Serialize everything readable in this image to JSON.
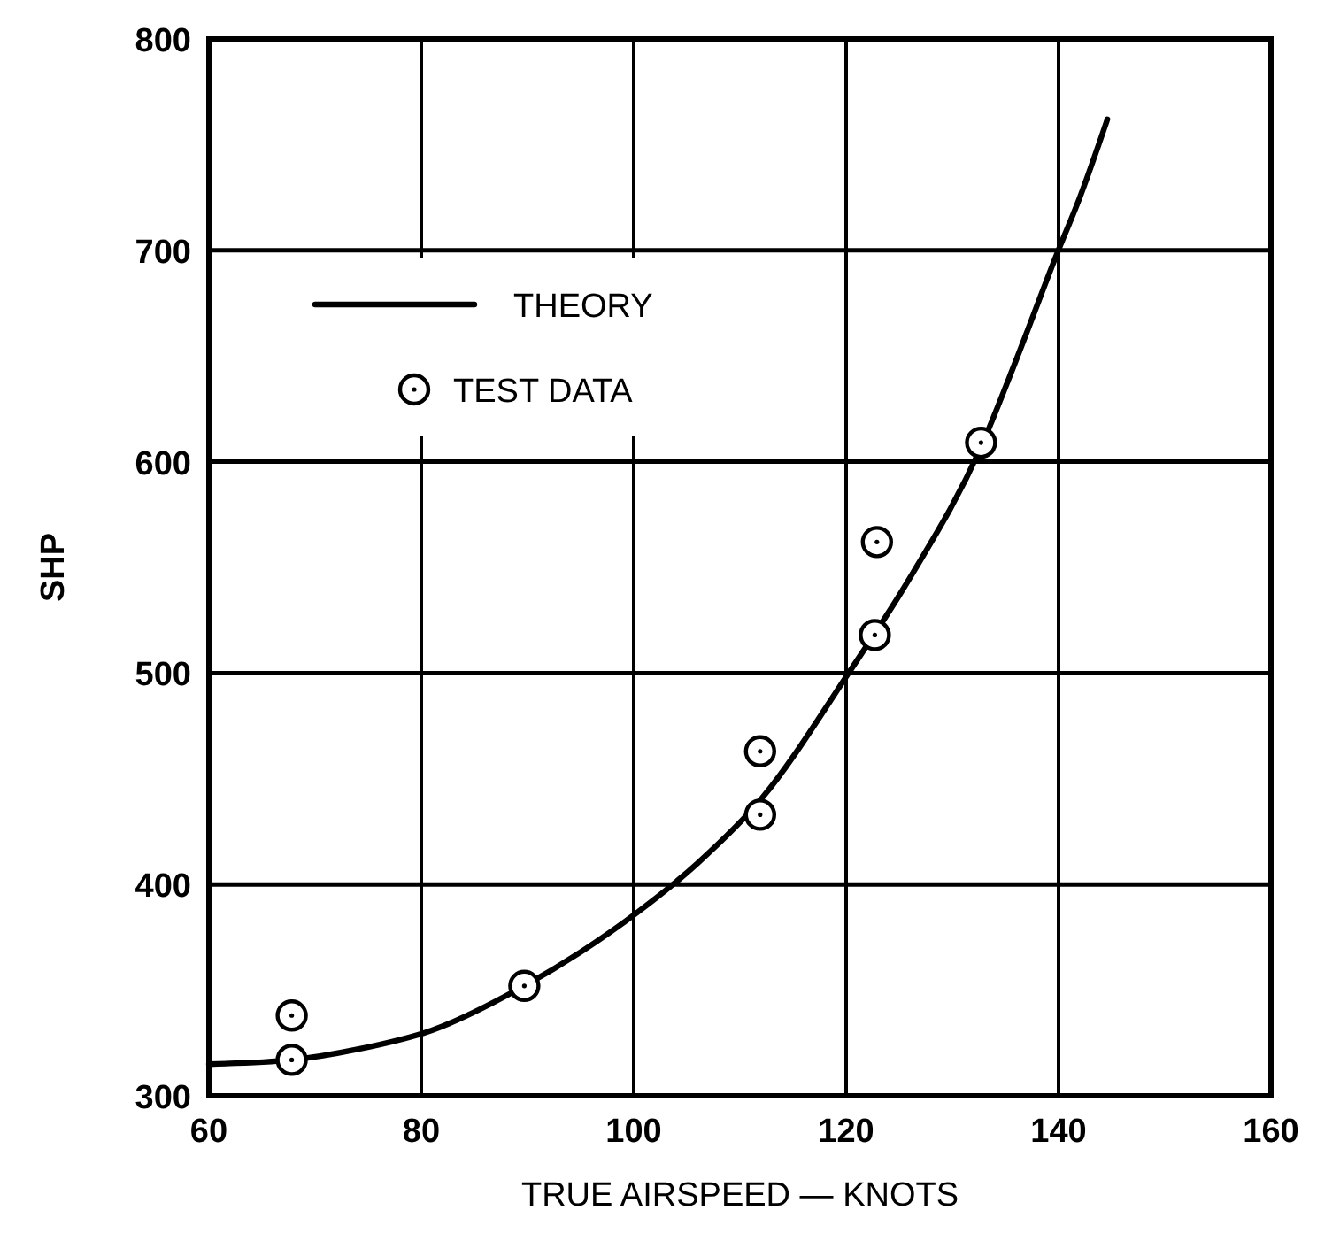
{
  "chart_data": {
    "type": "scatter",
    "xlabel": "TRUE AIRSPEED — KNOTS",
    "ylabel": "SHP",
    "xlim": [
      60,
      160
    ],
    "xticks": [
      60,
      80,
      100,
      120,
      140,
      160
    ],
    "ylim": [
      300,
      800
    ],
    "yticks": [
      300,
      400,
      500,
      600,
      700,
      800
    ],
    "grid": true,
    "legend": "top left",
    "series": [
      {
        "name": "THEORY",
        "type": "line",
        "color": "#000000",
        "marker": "none",
        "line_style": "solid",
        "x": [
          60,
          67.8,
          74,
          81,
          89.7,
          95,
          100.4,
          106,
          112.1,
          120.1,
          126,
          132.7,
          136,
          139.9,
          142,
          144.6
        ],
        "values": [
          315,
          317,
          322,
          331,
          352,
          368,
          387,
          410,
          441,
          499,
          545,
          607,
          648,
          699,
          725,
          762
        ]
      },
      {
        "name": "TEST DATA",
        "color": "#000000",
        "marker": "circle",
        "x": [
          67.8,
          67.8,
          89.7,
          111.9,
          111.9,
          122.9,
          122.7,
          132.7
        ],
        "values": [
          338,
          317,
          352,
          463,
          433,
          562,
          518,
          609
        ]
      }
    ]
  }
}
